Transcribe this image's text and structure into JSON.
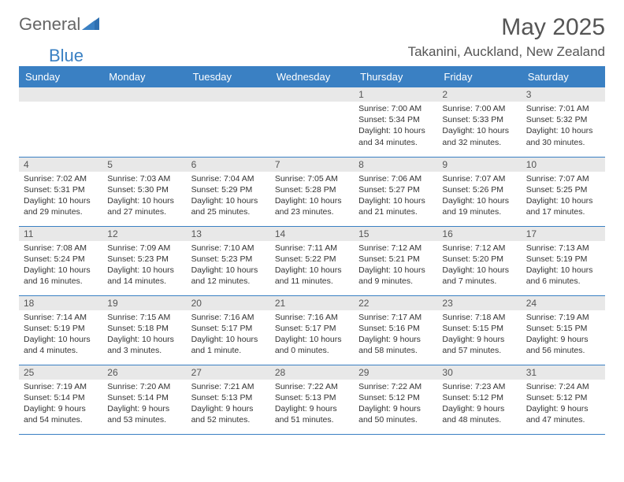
{
  "logo": {
    "text1": "General",
    "text2": "Blue"
  },
  "title": "May 2025",
  "subtitle": "Takanini, Auckland, New Zealand",
  "headers": [
    "Sunday",
    "Monday",
    "Tuesday",
    "Wednesday",
    "Thursday",
    "Friday",
    "Saturday"
  ],
  "colors": {
    "header_bg": "#3a80c3",
    "header_fg": "#ffffff",
    "daynum_bg": "#e8e8e8",
    "border": "#3a80c3",
    "text": "#333333",
    "title": "#555555"
  },
  "weeks": [
    [
      null,
      null,
      null,
      null,
      {
        "n": "1",
        "sr": "Sunrise: 7:00 AM",
        "ss": "Sunset: 5:34 PM",
        "dl": "Daylight: 10 hours and 34 minutes."
      },
      {
        "n": "2",
        "sr": "Sunrise: 7:00 AM",
        "ss": "Sunset: 5:33 PM",
        "dl": "Daylight: 10 hours and 32 minutes."
      },
      {
        "n": "3",
        "sr": "Sunrise: 7:01 AM",
        "ss": "Sunset: 5:32 PM",
        "dl": "Daylight: 10 hours and 30 minutes."
      }
    ],
    [
      {
        "n": "4",
        "sr": "Sunrise: 7:02 AM",
        "ss": "Sunset: 5:31 PM",
        "dl": "Daylight: 10 hours and 29 minutes."
      },
      {
        "n": "5",
        "sr": "Sunrise: 7:03 AM",
        "ss": "Sunset: 5:30 PM",
        "dl": "Daylight: 10 hours and 27 minutes."
      },
      {
        "n": "6",
        "sr": "Sunrise: 7:04 AM",
        "ss": "Sunset: 5:29 PM",
        "dl": "Daylight: 10 hours and 25 minutes."
      },
      {
        "n": "7",
        "sr": "Sunrise: 7:05 AM",
        "ss": "Sunset: 5:28 PM",
        "dl": "Daylight: 10 hours and 23 minutes."
      },
      {
        "n": "8",
        "sr": "Sunrise: 7:06 AM",
        "ss": "Sunset: 5:27 PM",
        "dl": "Daylight: 10 hours and 21 minutes."
      },
      {
        "n": "9",
        "sr": "Sunrise: 7:07 AM",
        "ss": "Sunset: 5:26 PM",
        "dl": "Daylight: 10 hours and 19 minutes."
      },
      {
        "n": "10",
        "sr": "Sunrise: 7:07 AM",
        "ss": "Sunset: 5:25 PM",
        "dl": "Daylight: 10 hours and 17 minutes."
      }
    ],
    [
      {
        "n": "11",
        "sr": "Sunrise: 7:08 AM",
        "ss": "Sunset: 5:24 PM",
        "dl": "Daylight: 10 hours and 16 minutes."
      },
      {
        "n": "12",
        "sr": "Sunrise: 7:09 AM",
        "ss": "Sunset: 5:23 PM",
        "dl": "Daylight: 10 hours and 14 minutes."
      },
      {
        "n": "13",
        "sr": "Sunrise: 7:10 AM",
        "ss": "Sunset: 5:23 PM",
        "dl": "Daylight: 10 hours and 12 minutes."
      },
      {
        "n": "14",
        "sr": "Sunrise: 7:11 AM",
        "ss": "Sunset: 5:22 PM",
        "dl": "Daylight: 10 hours and 11 minutes."
      },
      {
        "n": "15",
        "sr": "Sunrise: 7:12 AM",
        "ss": "Sunset: 5:21 PM",
        "dl": "Daylight: 10 hours and 9 minutes."
      },
      {
        "n": "16",
        "sr": "Sunrise: 7:12 AM",
        "ss": "Sunset: 5:20 PM",
        "dl": "Daylight: 10 hours and 7 minutes."
      },
      {
        "n": "17",
        "sr": "Sunrise: 7:13 AM",
        "ss": "Sunset: 5:19 PM",
        "dl": "Daylight: 10 hours and 6 minutes."
      }
    ],
    [
      {
        "n": "18",
        "sr": "Sunrise: 7:14 AM",
        "ss": "Sunset: 5:19 PM",
        "dl": "Daylight: 10 hours and 4 minutes."
      },
      {
        "n": "19",
        "sr": "Sunrise: 7:15 AM",
        "ss": "Sunset: 5:18 PM",
        "dl": "Daylight: 10 hours and 3 minutes."
      },
      {
        "n": "20",
        "sr": "Sunrise: 7:16 AM",
        "ss": "Sunset: 5:17 PM",
        "dl": "Daylight: 10 hours and 1 minute."
      },
      {
        "n": "21",
        "sr": "Sunrise: 7:16 AM",
        "ss": "Sunset: 5:17 PM",
        "dl": "Daylight: 10 hours and 0 minutes."
      },
      {
        "n": "22",
        "sr": "Sunrise: 7:17 AM",
        "ss": "Sunset: 5:16 PM",
        "dl": "Daylight: 9 hours and 58 minutes."
      },
      {
        "n": "23",
        "sr": "Sunrise: 7:18 AM",
        "ss": "Sunset: 5:15 PM",
        "dl": "Daylight: 9 hours and 57 minutes."
      },
      {
        "n": "24",
        "sr": "Sunrise: 7:19 AM",
        "ss": "Sunset: 5:15 PM",
        "dl": "Daylight: 9 hours and 56 minutes."
      }
    ],
    [
      {
        "n": "25",
        "sr": "Sunrise: 7:19 AM",
        "ss": "Sunset: 5:14 PM",
        "dl": "Daylight: 9 hours and 54 minutes."
      },
      {
        "n": "26",
        "sr": "Sunrise: 7:20 AM",
        "ss": "Sunset: 5:14 PM",
        "dl": "Daylight: 9 hours and 53 minutes."
      },
      {
        "n": "27",
        "sr": "Sunrise: 7:21 AM",
        "ss": "Sunset: 5:13 PM",
        "dl": "Daylight: 9 hours and 52 minutes."
      },
      {
        "n": "28",
        "sr": "Sunrise: 7:22 AM",
        "ss": "Sunset: 5:13 PM",
        "dl": "Daylight: 9 hours and 51 minutes."
      },
      {
        "n": "29",
        "sr": "Sunrise: 7:22 AM",
        "ss": "Sunset: 5:12 PM",
        "dl": "Daylight: 9 hours and 50 minutes."
      },
      {
        "n": "30",
        "sr": "Sunrise: 7:23 AM",
        "ss": "Sunset: 5:12 PM",
        "dl": "Daylight: 9 hours and 48 minutes."
      },
      {
        "n": "31",
        "sr": "Sunrise: 7:24 AM",
        "ss": "Sunset: 5:12 PM",
        "dl": "Daylight: 9 hours and 47 minutes."
      }
    ]
  ]
}
